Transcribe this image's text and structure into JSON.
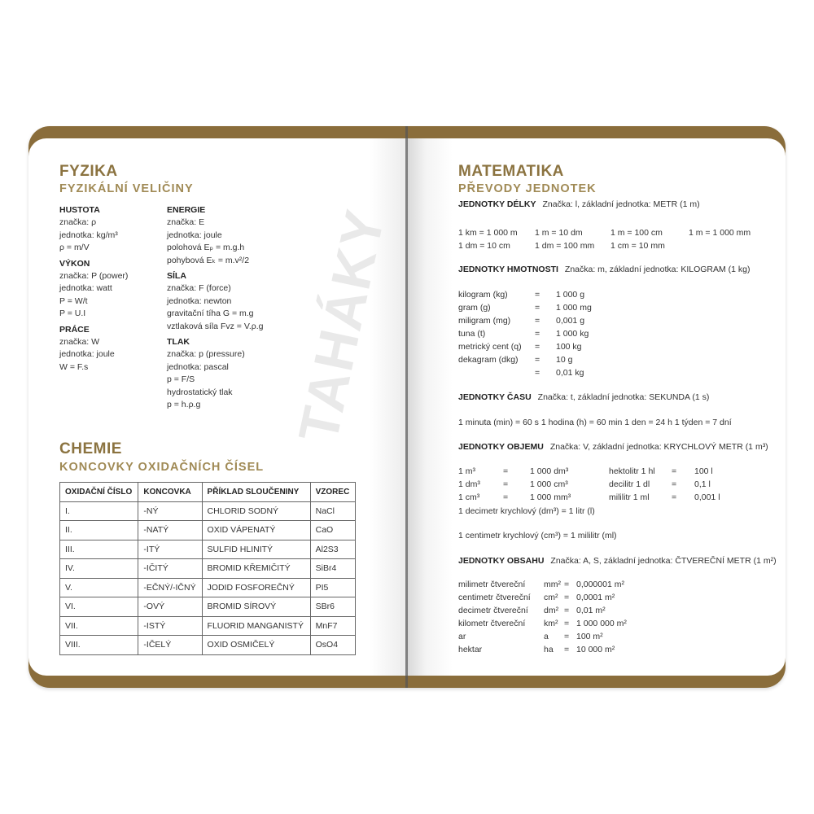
{
  "colors": {
    "cover": "#8a6d3b",
    "heading": "#8b7340",
    "subheading": "#a08a55"
  },
  "watermark": "TAHÁKY",
  "left": {
    "title": "FYZIKA",
    "subtitle": "FYZIKÁLNÍ VELIČINY",
    "col1": [
      {
        "head": "HUSTOTA",
        "lines": [
          "značka: ρ",
          "jednotka: kg/m³",
          "ρ = m/V"
        ]
      },
      {
        "head": "VÝKON",
        "lines": [
          "značka: P (power)",
          "jednotka: watt",
          "P = W/t",
          "P = U.I"
        ]
      },
      {
        "head": "PRÁCE",
        "lines": [
          "značka: W",
          "jednotka: joule",
          "W = F.s"
        ]
      }
    ],
    "col2": [
      {
        "head": "ENERGIE",
        "lines": [
          "značka: E",
          "jednotka: joule",
          "polohová Eₚ = m.g.h",
          "pohybová Eₖ = m.v²/2"
        ]
      },
      {
        "head": "SÍLA",
        "lines": [
          "značka: F (force)",
          "jednotka: newton",
          "gravitační tíha G = m.g",
          "vztlaková síla Fvz = V.ρ.g"
        ]
      },
      {
        "head": "TLAK",
        "lines": [
          "značka: p (pressure)",
          "jednotka: pascal",
          "p = F/S",
          "hydrostatický tlak",
          "p = h.ρ.g"
        ]
      }
    ],
    "chem_title": "CHEMIE",
    "chem_subtitle": "KONCOVKY OXIDAČNÍCH ČÍSEL",
    "table": {
      "headers": [
        "OXIDAČNÍ ČÍSLO",
        "KONCOVKA",
        "PŘÍKLAD SLOUČENINY",
        "VZOREC"
      ],
      "rows": [
        [
          "I.",
          "-NÝ",
          "CHLORID SODNÝ",
          "NaCl"
        ],
        [
          "II.",
          "-NATÝ",
          "OXID VÁPENATÝ",
          "CaO"
        ],
        [
          "III.",
          "-ITÝ",
          "SULFID HLINITÝ",
          "Al2S3"
        ],
        [
          "IV.",
          "-IČITÝ",
          "BROMID KŘEMIČITÝ",
          "SiBr4"
        ],
        [
          "V.",
          "-EČNÝ/-IČNÝ",
          "JODID FOSFOREČNÝ",
          "PI5"
        ],
        [
          "VI.",
          "-OVÝ",
          "BROMID SÍROVÝ",
          "SBr6"
        ],
        [
          "VII.",
          "-ISTÝ",
          "FLUORID MANGANISTÝ",
          "MnF7"
        ],
        [
          "VIII.",
          "-IČELÝ",
          "OXID OSMIČELÝ",
          "OsO4"
        ]
      ]
    }
  },
  "right": {
    "title": "MATEMATIKA",
    "subtitle": "PŘEVODY JEDNOTEK",
    "delky": {
      "head": "JEDNOTKY DÉLKY",
      "note": "Značka: l, základní jednotka: METR (1 m)",
      "rows": [
        [
          "1 km  = 1 000 m",
          "1 m   = 10 dm",
          "1 m   = 100 cm",
          "1 m  = 1 000 mm"
        ],
        [
          "1 dm  = 10 cm",
          "1 dm  = 100 mm",
          "1 cm  = 10 mm",
          ""
        ]
      ]
    },
    "hmotnosti": {
      "head": "JEDNOTKY HMOTNOSTI",
      "note": "Značka: m, základní jednotka: KILOGRAM (1 kg)",
      "rows": [
        [
          "kilogram (kg)",
          "=",
          "1 000 g"
        ],
        [
          "gram (g)",
          "=",
          "1 000 mg"
        ],
        [
          "miligram (mg)",
          "=",
          "0,001 g"
        ],
        [
          "tuna (t)",
          "=",
          "1 000 kg"
        ],
        [
          "metrický cent (q)",
          "=",
          "100 kg"
        ],
        [
          "dekagram (dkg)",
          "=",
          "10 g"
        ],
        [
          "",
          "=",
          "0,01 kg"
        ]
      ]
    },
    "casu": {
      "head": "JEDNOTKY ČASU",
      "note": "Značka: t, základní jednotka: SEKUNDA (1 s)",
      "line": "1 minuta (min) = 60 s    1 hodina (h) = 60 min    1 den = 24 h    1 týden = 7 dní"
    },
    "objemu": {
      "head": "JEDNOTKY OBJEMU",
      "note": "Značka: V, základní jednotka: KRYCHLOVÝ METR (1 m³)",
      "rows": [
        [
          "1 m³",
          "=",
          "1 000 dm³",
          "hektolitr 1 hl",
          "=",
          "100 l"
        ],
        [
          "1 dm³",
          "=",
          "1 000 cm³",
          "decilitr 1 dl",
          "=",
          "0,1 l"
        ],
        [
          "1 cm³",
          "=",
          "1 000 mm³",
          "mililitr 1 ml",
          "=",
          "0,001 l"
        ]
      ],
      "extra1": "1 decimetr krychlový (dm³) = 1 litr (l)",
      "extra2": "1 centimetr krychlový (cm³) = 1 mililitr (ml)"
    },
    "obsahu": {
      "head": "JEDNOTKY OBSAHU",
      "note": "Značka: A, S, základní jednotka: ČTVEREČNÍ METR (1 m²)",
      "rows": [
        [
          "milimetr čtvereční",
          "mm²",
          "=",
          "0,000001 m²"
        ],
        [
          "centimetr čtvereční",
          "cm²",
          "=",
          "0,0001 m²"
        ],
        [
          "decimetr čtvereční",
          "dm²",
          "=",
          "0,01 m²"
        ],
        [
          "kilometr čtvereční",
          "km²",
          "=",
          "1 000 000 m²"
        ],
        [
          "ar",
          "a",
          "=",
          "100 m²"
        ],
        [
          "hektar",
          "ha",
          "=",
          "10 000 m²"
        ]
      ]
    }
  }
}
